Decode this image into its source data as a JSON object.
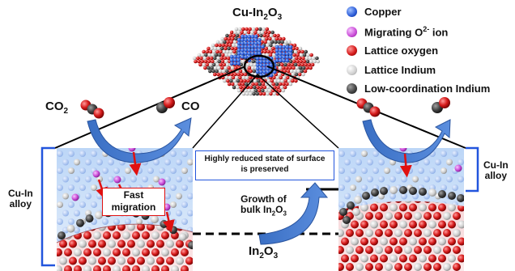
{
  "title": {
    "main": "Cu-In",
    "sub": "2",
    "tail": "O",
    "sub2": "3"
  },
  "legend": [
    {
      "label": "Copper",
      "color": "#2a5bd7",
      "icon": "copper-atom-icon"
    },
    {
      "label": "Migrating O",
      "sup": "2-",
      "suffix": " ion",
      "color": "#c94bd6",
      "icon": "migrating-oxygen-ion-icon"
    },
    {
      "label": "Lattice oxygen",
      "color": "#d61b1b",
      "icon": "lattice-oxygen-icon"
    },
    {
      "label": "Lattice Indium",
      "color": "#cfcfcf",
      "icon": "lattice-indium-icon"
    },
    {
      "label": "Low-coordination Indium",
      "color": "#555555",
      "icon": "low-coordination-indium-icon"
    }
  ],
  "reaction": {
    "reactant": "CO",
    "reactant_sub": "2",
    "product": "CO"
  },
  "left_region_label": {
    "line1": "Cu-In",
    "line2": "alloy"
  },
  "right_region_label": {
    "line1": "Cu-In",
    "line2": "alloy"
  },
  "migration_box": {
    "line1": "Fast",
    "line2": "migration"
  },
  "state_box": {
    "line1": "Highly reduced state of surface",
    "line2": "is preserved"
  },
  "growth_label": {
    "line1": "Growth of",
    "line2": "bulk In",
    "sub": "2",
    "tail": "O",
    "sub2": "3"
  },
  "bottom_label": {
    "main": "In",
    "sub": "2",
    "tail": "O",
    "sub2": "3"
  }
}
